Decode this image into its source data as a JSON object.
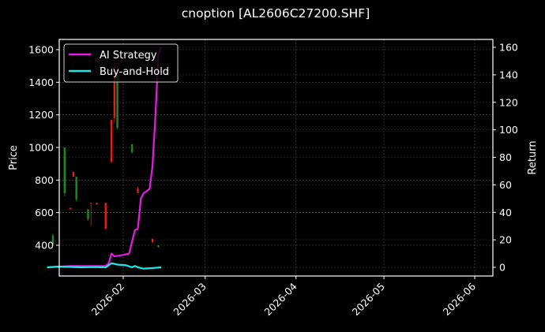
{
  "chart_data": {
    "type": "line",
    "title": "cnoption [AL2606C27200.SHF]",
    "xlabel": "",
    "ylabel": "Price",
    "ylabel_right": "Return",
    "grid": true,
    "legend_position": "upper left",
    "x_ticks": [
      "2026-02",
      "2026-03",
      "2026-04",
      "2026-05",
      "2026-06"
    ],
    "y_ticks_left": [
      400,
      600,
      800,
      1000,
      1200,
      1400,
      1600
    ],
    "y_ticks_right": [
      0,
      20,
      40,
      60,
      80,
      100,
      120,
      140,
      160
    ],
    "ylim_left": [
      240,
      1660
    ],
    "ylim_right": [
      -6,
      165
    ],
    "candles": [
      {
        "date": "2026-01-08",
        "open": 400,
        "close": 460,
        "high": 470,
        "low": 390,
        "color": "green"
      },
      {
        "date": "2026-01-12",
        "open": 720,
        "close": 1000,
        "high": 1000,
        "low": 700,
        "color": "green"
      },
      {
        "date": "2026-01-14",
        "open": 630,
        "close": 620,
        "high": 630,
        "low": 620,
        "color": "red"
      },
      {
        "date": "2026-01-15",
        "open": 820,
        "close": 850,
        "high": 850,
        "low": 820,
        "color": "red"
      },
      {
        "date": "2026-01-16",
        "open": 680,
        "close": 820,
        "high": 820,
        "low": 670,
        "color": "green"
      },
      {
        "date": "2026-01-20",
        "open": 560,
        "close": 620,
        "high": 620,
        "low": 550,
        "color": "green"
      },
      {
        "date": "2026-01-21",
        "open": 660,
        "close": 655,
        "high": 660,
        "low": 520,
        "color": "red"
      },
      {
        "date": "2026-01-23",
        "open": 660,
        "close": 650,
        "high": 660,
        "low": 650,
        "color": "red"
      },
      {
        "date": "2026-01-26",
        "open": 660,
        "close": 500,
        "high": 660,
        "low": 500,
        "color": "red"
      },
      {
        "date": "2026-01-28",
        "open": 1170,
        "close": 910,
        "high": 1170,
        "low": 910,
        "color": "red"
      },
      {
        "date": "2026-01-29",
        "open": 1500,
        "close": 1180,
        "high": 1550,
        "low": 1150,
        "color": "red"
      },
      {
        "date": "2026-01-30",
        "open": 1120,
        "close": 1460,
        "high": 1500,
        "low": 1110,
        "color": "green"
      },
      {
        "date": "2026-02-04",
        "open": 970,
        "close": 1020,
        "high": 1020,
        "low": 960,
        "color": "green"
      },
      {
        "date": "2026-02-06",
        "open": 750,
        "close": 720,
        "high": 760,
        "low": 720,
        "color": "red"
      },
      {
        "date": "2026-02-11",
        "open": 440,
        "close": 420,
        "high": 440,
        "low": 410,
        "color": "red"
      },
      {
        "date": "2026-02-13",
        "open": 400,
        "close": 390,
        "high": 400,
        "low": 385,
        "color": "green"
      }
    ],
    "series": [
      {
        "name": "AI Strategy",
        "color": "#e619e6",
        "axis": "right",
        "points": [
          [
            "2026-01-06",
            0
          ],
          [
            "2026-01-10",
            0.5
          ],
          [
            "2026-01-14",
            1
          ],
          [
            "2026-01-18",
            1
          ],
          [
            "2026-01-22",
            1
          ],
          [
            "2026-01-26",
            1
          ],
          [
            "2026-01-27",
            3
          ],
          [
            "2026-01-28",
            10
          ],
          [
            "2026-01-29",
            8
          ],
          [
            "2026-02-01",
            9
          ],
          [
            "2026-02-03",
            10
          ],
          [
            "2026-02-05",
            27
          ],
          [
            "2026-02-06",
            28
          ],
          [
            "2026-02-07",
            50
          ],
          [
            "2026-02-08",
            54
          ],
          [
            "2026-02-10",
            57
          ],
          [
            "2026-02-11",
            74
          ],
          [
            "2026-02-12",
            110
          ],
          [
            "2026-02-13",
            155
          ],
          [
            "2026-02-14",
            160
          ]
        ]
      },
      {
        "name": "Buy-and-Hold",
        "color": "#1ee6e6",
        "axis": "right",
        "points": [
          [
            "2026-01-06",
            0
          ],
          [
            "2026-01-10",
            0.5
          ],
          [
            "2026-01-14",
            0.3
          ],
          [
            "2026-01-18",
            0
          ],
          [
            "2026-01-22",
            0.2
          ],
          [
            "2026-01-26",
            0
          ],
          [
            "2026-01-28",
            3
          ],
          [
            "2026-01-30",
            2
          ],
          [
            "2026-02-02",
            1.5
          ],
          [
            "2026-02-04",
            0
          ],
          [
            "2026-02-05",
            1
          ],
          [
            "2026-02-06",
            0
          ],
          [
            "2026-02-08",
            -1
          ],
          [
            "2026-02-11",
            -0.5
          ],
          [
            "2026-02-14",
            0
          ]
        ]
      }
    ]
  },
  "legend": {
    "items": [
      {
        "label": "AI Strategy",
        "color": "#e619e6"
      },
      {
        "label": "Buy-and-Hold",
        "color": "#1ee6e6"
      }
    ]
  },
  "colors": {
    "background": "#000000",
    "up": "#1a8c1a",
    "down": "#e61a1a",
    "grid": "#555555",
    "axis": "#ffffff"
  }
}
